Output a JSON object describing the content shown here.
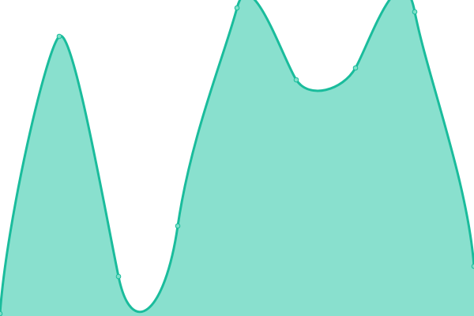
{
  "chart_data": {
    "type": "area",
    "x": [
      0,
      1,
      2,
      3,
      4,
      5,
      6,
      7,
      8
    ],
    "values": [
      3,
      354,
      50,
      114,
      390,
      299,
      314,
      385,
      63
    ],
    "ylim": [
      0,
      400
    ],
    "xlim": [
      0,
      8
    ],
    "grid": false,
    "smooth": true,
    "colors": {
      "line": "#1abc9c",
      "fill": "#89e0ce",
      "point": "#7ee0c8"
    }
  }
}
